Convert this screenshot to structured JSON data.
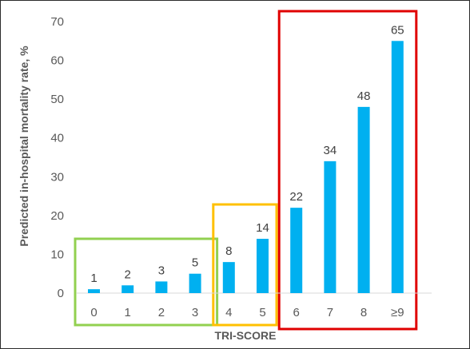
{
  "chart_data": {
    "type": "bar",
    "title": "",
    "xlabel": "TRI-SCORE",
    "ylabel": "Predicted in-hospital mortality rate, %",
    "ylim": [
      0,
      70
    ],
    "yticks": [
      "0",
      "10",
      "20",
      "30",
      "40",
      "50",
      "60",
      "70"
    ],
    "categories": [
      "0",
      "1",
      "2",
      "3",
      "4",
      "5",
      "6",
      "7",
      "8",
      "≥9"
    ],
    "values": [
      1,
      2,
      3,
      5,
      8,
      14,
      22,
      34,
      48,
      65
    ],
    "data_labels": [
      "1",
      "2",
      "3",
      "5",
      "8",
      "14",
      "22",
      "34",
      "48",
      "65"
    ],
    "grid": false,
    "legend": "none",
    "bar_color": "#00B0F0",
    "groups": [
      {
        "categories": [
          "0",
          "1",
          "2",
          "3"
        ],
        "box_color": "#92D050"
      },
      {
        "categories": [
          "4",
          "5"
        ],
        "box_color": "#FFC000"
      },
      {
        "categories": [
          "6",
          "7",
          "8",
          "≥9"
        ],
        "box_color": "#E00000"
      }
    ]
  }
}
